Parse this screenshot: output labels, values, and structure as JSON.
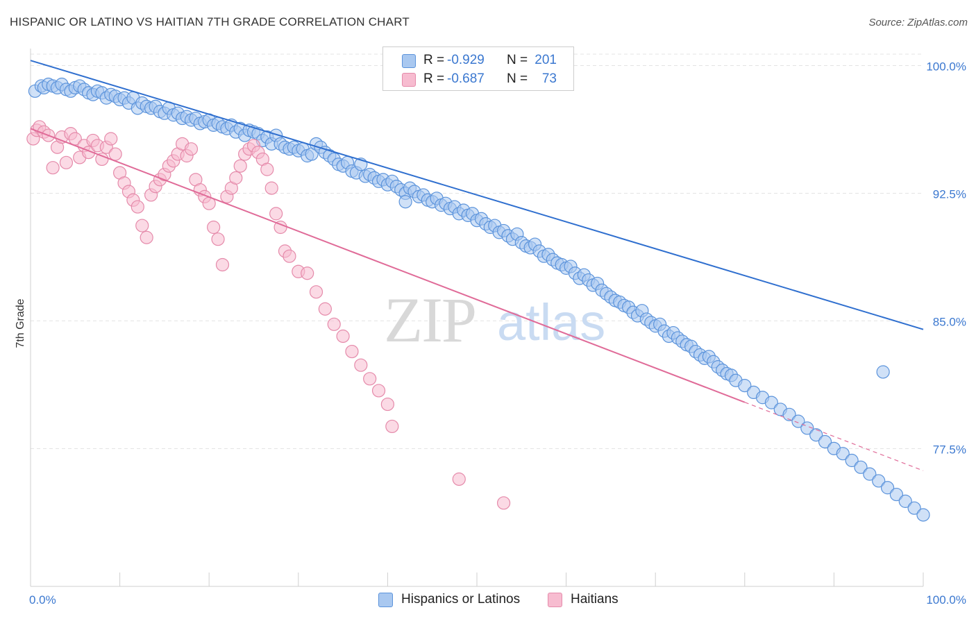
{
  "header": {
    "title": "HISPANIC OR LATINO VS HAITIAN 7TH GRADE CORRELATION CHART",
    "source": "Source: ZipAtlas.com"
  },
  "watermark": {
    "zip": "ZIP",
    "atlas": "atlas"
  },
  "legend": {
    "rows": [
      {
        "r_label": "R =",
        "r_value": "-0.929",
        "n_label": "N =",
        "n_value": "201"
      },
      {
        "r_label": "R =",
        "r_value": "-0.687",
        "n_label": "N =",
        "n_value": "73"
      }
    ]
  },
  "bottom_legend": {
    "items": [
      {
        "label": "Hispanics or Latinos"
      },
      {
        "label": "Haitians"
      }
    ]
  },
  "colors": {
    "blue_fill": "#a9c8f0",
    "blue_stroke": "#5b93db",
    "blue_line": "#2f6fcf",
    "pink_fill": "#f7bcd0",
    "pink_stroke": "#e58aaa",
    "pink_line": "#e06b98",
    "axis_text": "#3b78d0",
    "grid": "#e3e3e3"
  },
  "chart_data": {
    "type": "scatter",
    "title": "HISPANIC OR LATINO VS HAITIAN 7TH GRADE CORRELATION CHART",
    "xlabel": "",
    "ylabel": "7th Grade",
    "xlim": [
      0,
      100
    ],
    "ylim": [
      69.4,
      101
    ],
    "x_tick_labels": [
      {
        "value": 0,
        "label": "0.0%"
      },
      {
        "value": 100,
        "label": "100.0%"
      }
    ],
    "y_tick_labels": [
      {
        "value": 100,
        "label": "100.0%"
      },
      {
        "value": 92.5,
        "label": "92.5%"
      },
      {
        "value": 85,
        "label": "85.0%"
      },
      {
        "value": 77.5,
        "label": "77.5%"
      }
    ],
    "series": [
      {
        "name": "Hispanics or Latinos",
        "color": "#a9c8f0",
        "r": -0.929,
        "n": 201,
        "trend": {
          "x": [
            0,
            100
          ],
          "y": [
            100.3,
            84.5
          ],
          "dashed_from": null
        },
        "points": [
          [
            0.5,
            98.5
          ],
          [
            1.2,
            98.8
          ],
          [
            1.5,
            98.7
          ],
          [
            2,
            98.9
          ],
          [
            2.5,
            98.8
          ],
          [
            3,
            98.7
          ],
          [
            3.5,
            98.9
          ],
          [
            4,
            98.6
          ],
          [
            4.5,
            98.5
          ],
          [
            5,
            98.7
          ],
          [
            5.5,
            98.8
          ],
          [
            6,
            98.6
          ],
          [
            6.5,
            98.4
          ],
          [
            7,
            98.3
          ],
          [
            7.5,
            98.5
          ],
          [
            8,
            98.4
          ],
          [
            8.5,
            98.1
          ],
          [
            9,
            98.3
          ],
          [
            9.5,
            98.2
          ],
          [
            10,
            98
          ],
          [
            10.5,
            98.1
          ],
          [
            11,
            97.8
          ],
          [
            11.5,
            98.1
          ],
          [
            12,
            97.5
          ],
          [
            12.5,
            97.8
          ],
          [
            13,
            97.6
          ],
          [
            13.5,
            97.5
          ],
          [
            14,
            97.6
          ],
          [
            14.5,
            97.3
          ],
          [
            15,
            97.2
          ],
          [
            15.5,
            97.5
          ],
          [
            16,
            97.1
          ],
          [
            16.5,
            97.2
          ],
          [
            17,
            96.9
          ],
          [
            17.5,
            97
          ],
          [
            18,
            96.8
          ],
          [
            18.5,
            96.9
          ],
          [
            19,
            96.6
          ],
          [
            19.5,
            96.7
          ],
          [
            20,
            96.8
          ],
          [
            20.5,
            96.5
          ],
          [
            21,
            96.6
          ],
          [
            21.5,
            96.4
          ],
          [
            22,
            96.3
          ],
          [
            22.5,
            96.5
          ],
          [
            23,
            96.1
          ],
          [
            23.5,
            96.3
          ],
          [
            24,
            95.9
          ],
          [
            24.5,
            96.2
          ],
          [
            25,
            96.1
          ],
          [
            25.5,
            96
          ],
          [
            26,
            95.6
          ],
          [
            26.5,
            95.8
          ],
          [
            27,
            95.4
          ],
          [
            27.5,
            95.9
          ],
          [
            28,
            95.4
          ],
          [
            28.5,
            95.2
          ],
          [
            29,
            95.1
          ],
          [
            29.5,
            95.2
          ],
          [
            30,
            95
          ],
          [
            30.5,
            95.1
          ],
          [
            31,
            94.7
          ],
          [
            31.5,
            94.8
          ],
          [
            32,
            95.4
          ],
          [
            32.5,
            95.2
          ],
          [
            33,
            94.9
          ],
          [
            33.5,
            94.7
          ],
          [
            34,
            94.5
          ],
          [
            34.5,
            94.2
          ],
          [
            35,
            94.1
          ],
          [
            35.5,
            94.3
          ],
          [
            36,
            93.8
          ],
          [
            36.5,
            93.7
          ],
          [
            37,
            94.2
          ],
          [
            37.5,
            93.5
          ],
          [
            38,
            93.6
          ],
          [
            38.5,
            93.4
          ],
          [
            39,
            93.2
          ],
          [
            39.5,
            93.3
          ],
          [
            40,
            93
          ],
          [
            40.5,
            93.2
          ],
          [
            41,
            92.9
          ],
          [
            41.5,
            92.7
          ],
          [
            42,
            92.5
          ],
          [
            42.5,
            92.8
          ],
          [
            43,
            92.6
          ],
          [
            43.5,
            92.3
          ],
          [
            44,
            92.4
          ],
          [
            44.5,
            92.1
          ],
          [
            45,
            92
          ],
          [
            45.5,
            92.2
          ],
          [
            46,
            91.8
          ],
          [
            46.5,
            91.9
          ],
          [
            47,
            91.6
          ],
          [
            47.5,
            91.7
          ],
          [
            48,
            91.3
          ],
          [
            48.5,
            91.5
          ],
          [
            49,
            91.2
          ],
          [
            49.5,
            91.3
          ],
          [
            50,
            90.9
          ],
          [
            50.5,
            91
          ],
          [
            51,
            90.7
          ],
          [
            51.5,
            90.5
          ],
          [
            52,
            90.6
          ],
          [
            52.5,
            90.2
          ],
          [
            53,
            90.3
          ],
          [
            53.5,
            90
          ],
          [
            54,
            89.8
          ],
          [
            54.5,
            90.1
          ],
          [
            55,
            89.6
          ],
          [
            55.5,
            89.4
          ],
          [
            56,
            89.3
          ],
          [
            56.5,
            89.5
          ],
          [
            57,
            89.1
          ],
          [
            57.5,
            88.8
          ],
          [
            58,
            88.9
          ],
          [
            58.5,
            88.6
          ],
          [
            59,
            88.4
          ],
          [
            59.5,
            88.3
          ],
          [
            60,
            88.1
          ],
          [
            60.5,
            88.2
          ],
          [
            61,
            87.8
          ],
          [
            61.5,
            87.5
          ],
          [
            62,
            87.7
          ],
          [
            62.5,
            87.4
          ],
          [
            63,
            87.1
          ],
          [
            63.5,
            87.2
          ],
          [
            64,
            86.8
          ],
          [
            64.5,
            86.6
          ],
          [
            65,
            86.4
          ],
          [
            65.5,
            86.2
          ],
          [
            66,
            86.1
          ],
          [
            66.5,
            85.9
          ],
          [
            67,
            85.8
          ],
          [
            67.5,
            85.5
          ],
          [
            68,
            85.3
          ],
          [
            68.5,
            85.6
          ],
          [
            69,
            85.1
          ],
          [
            69.5,
            84.9
          ],
          [
            70,
            84.7
          ],
          [
            70.5,
            84.8
          ],
          [
            71,
            84.4
          ],
          [
            71.5,
            84.1
          ],
          [
            72,
            84.3
          ],
          [
            72.5,
            84
          ],
          [
            73,
            83.8
          ],
          [
            73.5,
            83.6
          ],
          [
            74,
            83.5
          ],
          [
            74.5,
            83.2
          ],
          [
            75,
            83
          ],
          [
            75.5,
            82.8
          ],
          [
            76,
            82.9
          ],
          [
            76.5,
            82.6
          ],
          [
            77,
            82.3
          ],
          [
            77.5,
            82.1
          ],
          [
            78,
            81.9
          ],
          [
            78.5,
            81.8
          ],
          [
            79,
            81.5
          ],
          [
            80,
            81.2
          ],
          [
            81,
            80.8
          ],
          [
            82,
            80.5
          ],
          [
            83,
            80.2
          ],
          [
            84,
            79.8
          ],
          [
            85,
            79.5
          ],
          [
            86,
            79.1
          ],
          [
            87,
            78.7
          ],
          [
            88,
            78.3
          ],
          [
            89,
            77.9
          ],
          [
            90,
            77.5
          ],
          [
            91,
            77.2
          ],
          [
            92,
            76.8
          ],
          [
            93,
            76.4
          ],
          [
            94,
            76
          ],
          [
            95,
            75.6
          ],
          [
            96,
            75.2
          ],
          [
            97,
            74.8
          ],
          [
            98,
            74.4
          ],
          [
            99,
            74
          ],
          [
            100,
            73.6
          ],
          [
            42,
            92
          ],
          [
            95.5,
            82
          ]
        ]
      },
      {
        "name": "Haitians",
        "color": "#f7bcd0",
        "r": -0.687,
        "n": 73,
        "trend": {
          "x": [
            0,
            100
          ],
          "y": [
            96.3,
            76.2
          ],
          "dashed_from": 80
        },
        "points": [
          [
            0.3,
            95.7
          ],
          [
            0.7,
            96.2
          ],
          [
            1,
            96.4
          ],
          [
            1.5,
            96.1
          ],
          [
            2,
            95.9
          ],
          [
            2.5,
            94
          ],
          [
            3,
            95.2
          ],
          [
            3.5,
            95.8
          ],
          [
            4,
            94.3
          ],
          [
            4.5,
            96
          ],
          [
            5,
            95.7
          ],
          [
            5.5,
            94.6
          ],
          [
            6,
            95.3
          ],
          [
            6.5,
            94.9
          ],
          [
            7,
            95.6
          ],
          [
            7.5,
            95.3
          ],
          [
            8,
            94.5
          ],
          [
            8.5,
            95.2
          ],
          [
            9,
            95.7
          ],
          [
            9.5,
            94.8
          ],
          [
            10,
            93.7
          ],
          [
            10.5,
            93.1
          ],
          [
            11,
            92.6
          ],
          [
            11.5,
            92.1
          ],
          [
            12,
            91.7
          ],
          [
            12.5,
            90.6
          ],
          [
            13,
            89.9
          ],
          [
            13.5,
            92.4
          ],
          [
            14,
            92.9
          ],
          [
            14.5,
            93.3
          ],
          [
            15,
            93.6
          ],
          [
            15.5,
            94.1
          ],
          [
            16,
            94.4
          ],
          [
            16.5,
            94.8
          ],
          [
            17,
            95.4
          ],
          [
            17.5,
            94.7
          ],
          [
            18,
            95.1
          ],
          [
            18.5,
            93.3
          ],
          [
            19,
            92.7
          ],
          [
            19.5,
            92.3
          ],
          [
            20,
            91.9
          ],
          [
            20.5,
            90.5
          ],
          [
            21,
            89.8
          ],
          [
            21.5,
            88.3
          ],
          [
            22,
            92.3
          ],
          [
            22.5,
            92.8
          ],
          [
            23,
            93.4
          ],
          [
            23.5,
            94.1
          ],
          [
            24,
            94.8
          ],
          [
            24.5,
            95.1
          ],
          [
            25,
            95.3
          ],
          [
            25.5,
            94.9
          ],
          [
            26,
            94.5
          ],
          [
            26.5,
            93.9
          ],
          [
            27,
            92.8
          ],
          [
            27.5,
            91.3
          ],
          [
            28,
            90.5
          ],
          [
            28.5,
            89.1
          ],
          [
            29,
            88.8
          ],
          [
            30,
            87.9
          ],
          [
            31,
            87.8
          ],
          [
            32,
            86.7
          ],
          [
            33,
            85.7
          ],
          [
            34,
            84.8
          ],
          [
            35,
            84.1
          ],
          [
            36,
            83.2
          ],
          [
            37,
            82.4
          ],
          [
            38,
            81.6
          ],
          [
            39,
            80.9
          ],
          [
            40,
            80.1
          ],
          [
            40.5,
            78.8
          ],
          [
            48,
            75.7
          ],
          [
            53,
            74.3
          ]
        ]
      }
    ]
  }
}
